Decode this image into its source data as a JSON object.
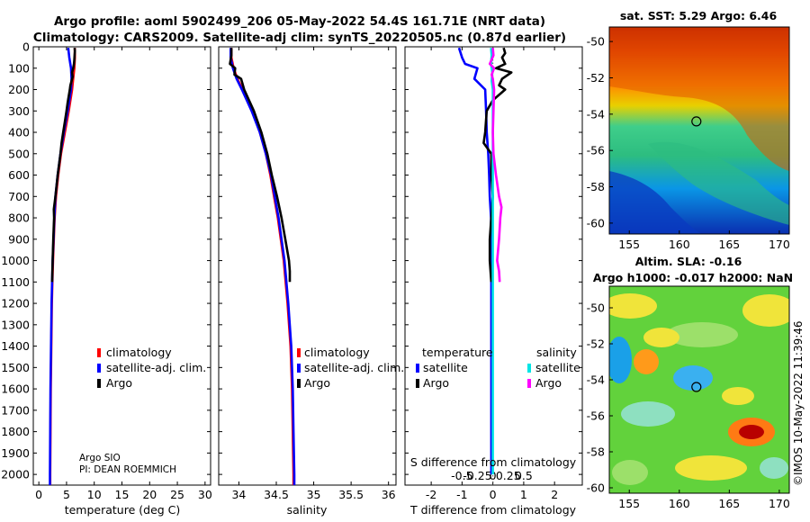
{
  "header": {
    "line1": "Argo profile: aoml 5902499_206 05-May-2022 54.4S 161.71E (NRT data)",
    "line2": "Climatology: CARS2009. Satellite-adj clim: synTS_20220505.nc (0.87d earlier)"
  },
  "colors": {
    "climatology": "#ff0000",
    "satellite": "#0000ff",
    "argo": "#000000",
    "sat_salinity": "#00e5e5",
    "argo_salinity": "#ff00ff"
  },
  "depth_ticks": [
    "0",
    "100",
    "200",
    "300",
    "400",
    "500",
    "600",
    "700",
    "800",
    "900",
    "1000",
    "1100",
    "1200",
    "1300",
    "1400",
    "1500",
    "1600",
    "1700",
    "1800",
    "1900",
    "2000"
  ],
  "credit": {
    "line1": "Argo SIO",
    "line2": "PI: DEAN ROEMMICH"
  },
  "map_sst": {
    "title": "sat. SST: 5.29 Argo: 6.46"
  },
  "map_sla": {
    "title1": "Altim. SLA: -0.16",
    "title2": "Argo h1000: -0.017 h2000: NaN"
  },
  "watermark": "©IMOS 10-May-2022 11:39:46",
  "chart_data": [
    {
      "type": "line",
      "title": "",
      "xlabel": "temperature (deg C)",
      "ylabel": "depth",
      "xlim": [
        -1,
        31
      ],
      "ylim": [
        2050,
        0
      ],
      "xticks": [
        0,
        5,
        10,
        15,
        20,
        25,
        30
      ],
      "xtick_labels": [
        "0",
        "5",
        "10",
        "15",
        "20",
        "25",
        "30"
      ],
      "legend": [
        "climatology",
        "satellite-adj. clim.",
        "Argo"
      ],
      "series": [
        {
          "name": "climatology",
          "color": "#ff0000",
          "depth": [
            5,
            50,
            100,
            150,
            200,
            300,
            400,
            500,
            600,
            700,
            800,
            900,
            1000,
            1100,
            1200,
            1400,
            1600,
            1800,
            2000,
            2050
          ],
          "values": [
            6.5,
            6.5,
            6.4,
            6.2,
            6.0,
            5.4,
            4.7,
            4.0,
            3.5,
            3.1,
            2.85,
            2.7,
            2.55,
            2.45,
            2.35,
            2.25,
            2.15,
            2.1,
            2.05,
            2.05
          ]
        },
        {
          "name": "satellite-adj. clim.",
          "color": "#0000ff",
          "depth": [
            5,
            50,
            100,
            150,
            200,
            300,
            400,
            500,
            600,
            700,
            800,
            900,
            1000,
            1100,
            1200,
            1400,
            1600,
            1800,
            2000,
            2050
          ],
          "values": [
            5.3,
            5.5,
            5.8,
            5.9,
            5.8,
            5.2,
            4.5,
            3.9,
            3.4,
            3.0,
            2.8,
            2.65,
            2.5,
            2.4,
            2.3,
            2.2,
            2.1,
            2.05,
            2.0,
            2.0
          ]
        },
        {
          "name": "Argo",
          "color": "#000000",
          "depth": [
            5,
            20,
            40,
            60,
            80,
            100,
            120,
            140,
            160,
            180,
            200,
            230,
            260,
            300,
            350,
            400,
            450,
            500,
            600,
            700,
            760,
            800,
            900,
            1000,
            1100
          ],
          "values": [
            6.46,
            6.5,
            6.45,
            6.4,
            6.35,
            6.2,
            6.0,
            6.1,
            5.9,
            5.7,
            5.6,
            5.4,
            5.2,
            5.0,
            4.7,
            4.4,
            4.1,
            3.9,
            3.4,
            3.0,
            2.7,
            2.75,
            2.6,
            2.5,
            2.4
          ]
        }
      ]
    },
    {
      "type": "line",
      "title": "",
      "xlabel": "salinity",
      "ylabel": "depth",
      "xlim": [
        33.73,
        36.1
      ],
      "ylim": [
        2050,
        0
      ],
      "xticks": [
        34,
        34.5,
        35,
        35.5,
        36
      ],
      "xtick_labels": [
        "34",
        "34.5",
        "35",
        "35.5",
        "36"
      ],
      "legend": [
        "climatology",
        "satellite-adj. clim.",
        "Argo"
      ],
      "series": [
        {
          "name": "climatology",
          "color": "#ff0000",
          "depth": [
            5,
            50,
            100,
            150,
            200,
            300,
            400,
            500,
            600,
            700,
            800,
            900,
            1000,
            1200,
            1400,
            1600,
            1800,
            2000,
            2050
          ],
          "values": [
            33.9,
            33.9,
            33.93,
            33.98,
            34.05,
            34.18,
            34.28,
            34.36,
            34.42,
            34.47,
            34.52,
            34.56,
            34.6,
            34.65,
            34.69,
            34.71,
            34.72,
            34.73,
            34.73
          ]
        },
        {
          "name": "satellite-adj. clim.",
          "color": "#0000ff",
          "depth": [
            5,
            50,
            100,
            150,
            200,
            300,
            400,
            500,
            600,
            700,
            800,
            900,
            1000,
            1200,
            1400,
            1600,
            1800,
            2000,
            2050
          ],
          "values": [
            33.89,
            33.89,
            33.92,
            33.97,
            34.04,
            34.17,
            34.28,
            34.36,
            34.43,
            34.48,
            34.53,
            34.57,
            34.61,
            34.66,
            34.7,
            34.72,
            34.73,
            34.74,
            34.74
          ]
        },
        {
          "name": "Argo",
          "color": "#000000",
          "depth": [
            5,
            40,
            80,
            100,
            130,
            150,
            200,
            300,
            400,
            500,
            600,
            700,
            800,
            900,
            1000,
            1050,
            1100
          ],
          "values": [
            33.9,
            33.9,
            33.88,
            33.95,
            33.94,
            34.03,
            34.07,
            34.2,
            34.3,
            34.38,
            34.44,
            34.51,
            34.57,
            34.62,
            34.67,
            34.68,
            34.68
          ]
        }
      ]
    },
    {
      "type": "line",
      "title": "",
      "xlabel": "T difference from climatology",
      "xlabel_top": "S difference from climatology",
      "ylabel": "depth",
      "xlim": [
        -2.85,
        2.9
      ],
      "ylim": [
        2050,
        0
      ],
      "xticks": [
        -2,
        -1,
        0,
        1,
        2
      ],
      "xtick_labels": [
        "-2",
        "-1",
        "0",
        "1",
        "2"
      ],
      "s_xticks": [
        -0.5,
        -0.25,
        0,
        0.25,
        0.5
      ],
      "s_xtick_labels": [
        "-0.5",
        "-0.25",
        "0",
        "0.25",
        "0.5"
      ],
      "legend_temperature": {
        "heading": "temperature",
        "items": [
          "satellite",
          "Argo"
        ]
      },
      "legend_salinity": {
        "heading": "salinity",
        "items": [
          "satellite",
          "Argo"
        ]
      },
      "series": [
        {
          "name": "satellite T diff",
          "color": "#0000ff",
          "depth": [
            5,
            50,
            80,
            100,
            150,
            200,
            300,
            400,
            500,
            600,
            700,
            800,
            1000,
            1200,
            1500,
            2000
          ],
          "values": [
            -1.1,
            -1.0,
            -0.9,
            -0.5,
            -0.6,
            -0.25,
            -0.22,
            -0.2,
            -0.15,
            -0.12,
            -0.1,
            -0.06,
            -0.05,
            -0.05,
            -0.05,
            -0.05
          ]
        },
        {
          "name": "Argo T diff",
          "color": "#000000",
          "depth": [
            5,
            30,
            50,
            80,
            100,
            120,
            150,
            180,
            200,
            250,
            300,
            400,
            450,
            500,
            600,
            700,
            800,
            900,
            1000,
            1100
          ],
          "values": [
            0.35,
            0.4,
            0.3,
            0.4,
            0.1,
            0.6,
            0.3,
            0.2,
            0.4,
            0.0,
            -0.2,
            -0.25,
            -0.3,
            -0.05,
            -0.05,
            0.0,
            -0.05,
            -0.1,
            -0.1,
            -0.05
          ]
        },
        {
          "name": "satellite S diff",
          "color": "#00e5e5",
          "depth": [
            5,
            40,
            80,
            100,
            120,
            160,
            200,
            300,
            500,
            800,
            1200,
            1600,
            2000
          ],
          "values": [
            -0.03,
            -0.02,
            -0.03,
            -0.02,
            -0.01,
            -0.02,
            0.0,
            0.0,
            0.0,
            0.0,
            0.0,
            0.0,
            0.0
          ]
        },
        {
          "name": "Argo S diff",
          "color": "#ff00ff",
          "depth": [
            5,
            40,
            80,
            100,
            130,
            150,
            200,
            300,
            400,
            500,
            600,
            700,
            750,
            800,
            900,
            1000,
            1050,
            1100
          ],
          "values": [
            0.0,
            0.01,
            -0.05,
            0.02,
            -0.02,
            0.0,
            0.02,
            0.01,
            0.0,
            0.01,
            0.05,
            0.1,
            0.14,
            0.12,
            0.1,
            0.07,
            0.1,
            0.11
          ]
        }
      ]
    },
    {
      "type": "heatmap",
      "title": "sat. SST: 5.29 Argo: 6.46",
      "xlim": [
        153,
        171
      ],
      "ylim": [
        -60.6,
        -49.2
      ],
      "xticks": [
        155,
        160,
        165,
        170
      ],
      "xtick_labels": [
        "155",
        "160",
        "165",
        "170"
      ],
      "yticks": [
        -50,
        -52,
        -54,
        -56,
        -58,
        -60
      ],
      "ytick_labels": [
        "-50",
        "-52",
        "-54",
        "-56",
        "-58",
        "-60"
      ],
      "marker": {
        "lon": 161.71,
        "lat": -54.4
      }
    },
    {
      "type": "heatmap",
      "title": "Altim. SLA: -0.16",
      "subtitle": "Argo h1000: -0.017 h2000: NaN",
      "xlim": [
        153,
        171
      ],
      "ylim": [
        -60.3,
        -48.8
      ],
      "xticks": [
        155,
        160,
        165,
        170
      ],
      "xtick_labels": [
        "155",
        "160",
        "165",
        "170"
      ],
      "yticks": [
        -50,
        -52,
        -54,
        -56,
        -58,
        -60
      ],
      "ytick_labels": [
        "-50",
        "-52",
        "-54",
        "-56",
        "-58",
        "-60"
      ],
      "marker": {
        "lon": 161.71,
        "lat": -54.4
      }
    }
  ]
}
